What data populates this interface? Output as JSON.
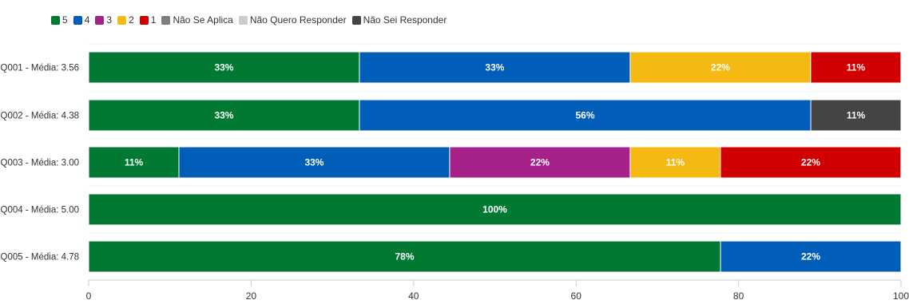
{
  "chart_data": {
    "type": "bar",
    "orientation": "horizontal",
    "stacked": true,
    "legend_position": "top-left",
    "categories": [
      "Q001 - Média: 3.56",
      "Q002 - Média: 4.38",
      "Q003 - Média: 3.00",
      "Q004 - Média: 5.00",
      "Q005 - Média: 4.78"
    ],
    "series": [
      {
        "name": "5",
        "color": "#007a33",
        "values": [
          33.33,
          33.33,
          11.11,
          100,
          77.78
        ],
        "labels": [
          "33%",
          "33%",
          "11%",
          "100%",
          "78%"
        ]
      },
      {
        "name": "4",
        "color": "#005eb8",
        "values": [
          33.33,
          55.56,
          33.33,
          0,
          22.22
        ],
        "labels": [
          "33%",
          "56%",
          "33%",
          "",
          "22%"
        ]
      },
      {
        "name": "3",
        "color": "#a6218a",
        "values": [
          0,
          0,
          22.22,
          0,
          0
        ],
        "labels": [
          "",
          "",
          "22%",
          "",
          ""
        ]
      },
      {
        "name": "2",
        "color": "#f5b914",
        "values": [
          22.22,
          0,
          11.11,
          0,
          0
        ],
        "labels": [
          "22%",
          "",
          "11%",
          "",
          ""
        ]
      },
      {
        "name": "1",
        "color": "#d10000",
        "values": [
          11.11,
          0,
          22.22,
          0,
          0
        ],
        "labels": [
          "11%",
          "",
          "22%",
          "",
          ""
        ]
      },
      {
        "name": "Não Se Aplica",
        "color": "#7f7f7f",
        "values": [
          0,
          0,
          0,
          0,
          0
        ],
        "labels": [
          "",
          "",
          "",
          "",
          ""
        ]
      },
      {
        "name": "Não Quero Responder",
        "color": "#cccccc",
        "values": [
          0,
          0,
          0,
          0,
          0
        ],
        "labels": [
          "",
          "",
          "",
          "",
          ""
        ]
      },
      {
        "name": "Não Sei Responder",
        "color": "#444444",
        "values": [
          0,
          11.11,
          0,
          0,
          0
        ],
        "labels": [
          "",
          "11%",
          "",
          "",
          ""
        ]
      }
    ],
    "xlim": [
      0,
      100
    ],
    "xticks": [
      "0",
      "20",
      "40",
      "60",
      "80",
      "100"
    ],
    "grid": false
  }
}
